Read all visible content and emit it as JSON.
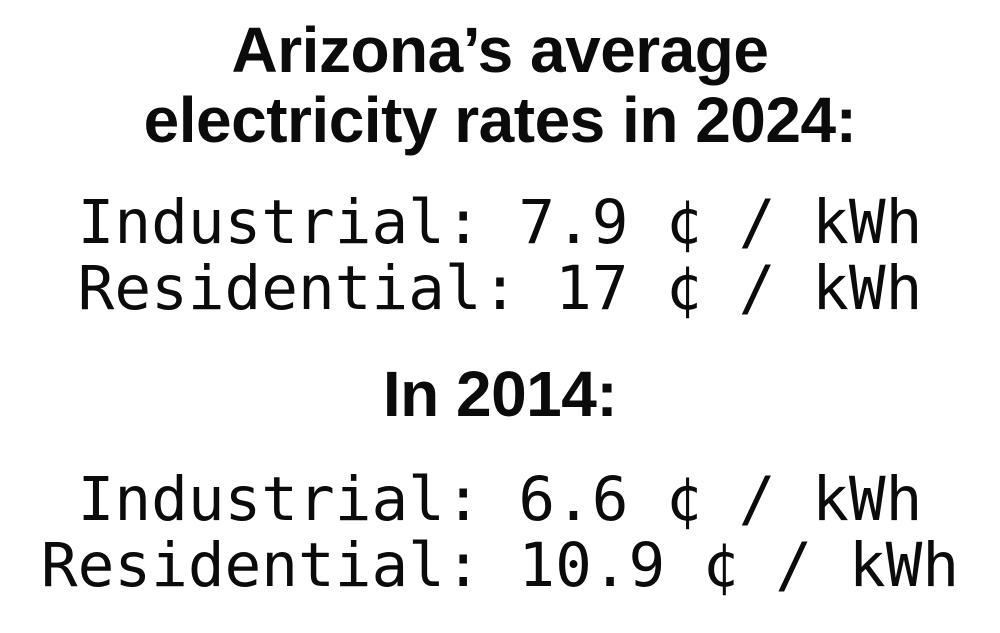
{
  "colors": {
    "background": "#ffffff",
    "text": "#0b0b0b"
  },
  "heading_2024": {
    "line1": "Arizona’s average",
    "line2": "electricity rates in 2024:"
  },
  "rates_2024": {
    "industrial_line": "Industrial: 7.9 ¢ / kWh",
    "residential_line": "Residential: 17 ¢ / kWh",
    "industrial_cents_per_kwh": 7.9,
    "residential_cents_per_kwh": 17,
    "unit": "¢ / kWh"
  },
  "heading_2014": {
    "label": "In 2014:"
  },
  "rates_2014": {
    "industrial_line": "Industrial: 6.6 ¢ / kWh",
    "residential_line": "Residential: 10.9 ¢ / kWh",
    "industrial_cents_per_kwh": 6.6,
    "residential_cents_per_kwh": 10.9,
    "unit": "¢ / kWh"
  }
}
